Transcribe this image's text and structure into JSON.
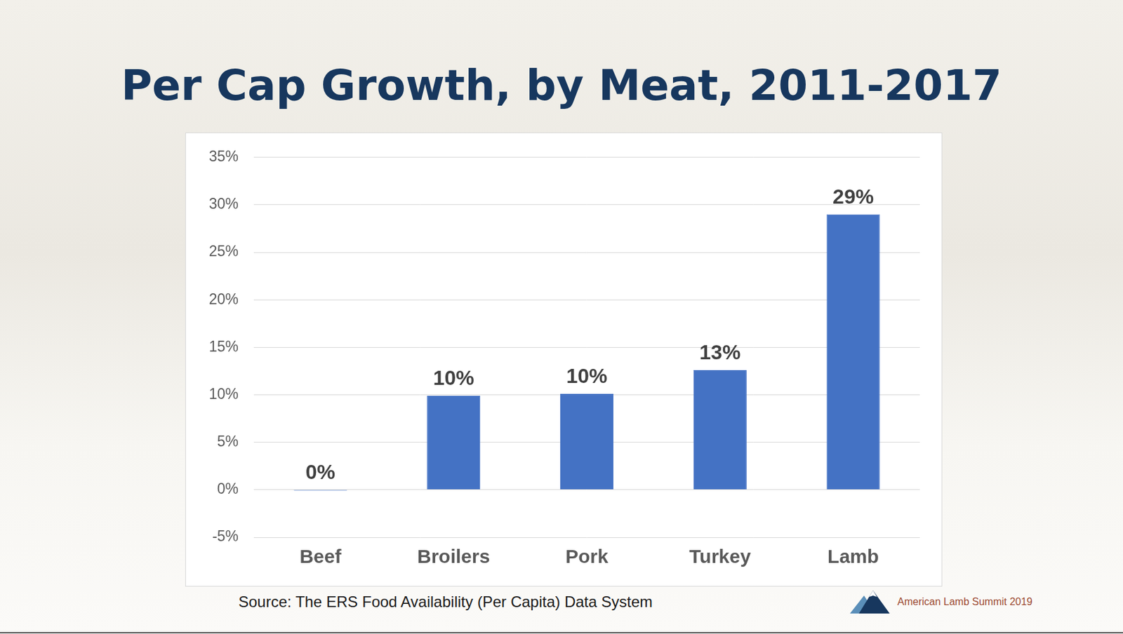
{
  "chart_data": {
    "type": "bar",
    "title": "Per Cap Growth, by Meat, 2011-2017",
    "categories": [
      "Beef",
      "Broilers",
      "Pork",
      "Turkey",
      "Lamb"
    ],
    "values": [
      -0.1,
      9.9,
      10.1,
      12.6,
      29.0
    ],
    "value_labels": [
      "0%",
      "10%",
      "10%",
      "13%",
      "29%"
    ],
    "color": "#4472c4",
    "ylim": [
      -5,
      35
    ],
    "yticks": [
      {
        "value": -5,
        "label": "-5%"
      },
      {
        "value": 0,
        "label": "0%"
      },
      {
        "value": 5,
        "label": "5%"
      },
      {
        "value": 10,
        "label": "10%"
      },
      {
        "value": 15,
        "label": "15%"
      },
      {
        "value": 20,
        "label": "20%"
      },
      {
        "value": 25,
        "label": "25%"
      },
      {
        "value": 30,
        "label": "30%"
      },
      {
        "value": 35,
        "label": "35%"
      }
    ],
    "grid": true,
    "data_labels": true,
    "source": "Source:  The ERS Food Availability (Per Capita) Data System",
    "annotations": [
      "American Lamb Summit 2019"
    ]
  }
}
